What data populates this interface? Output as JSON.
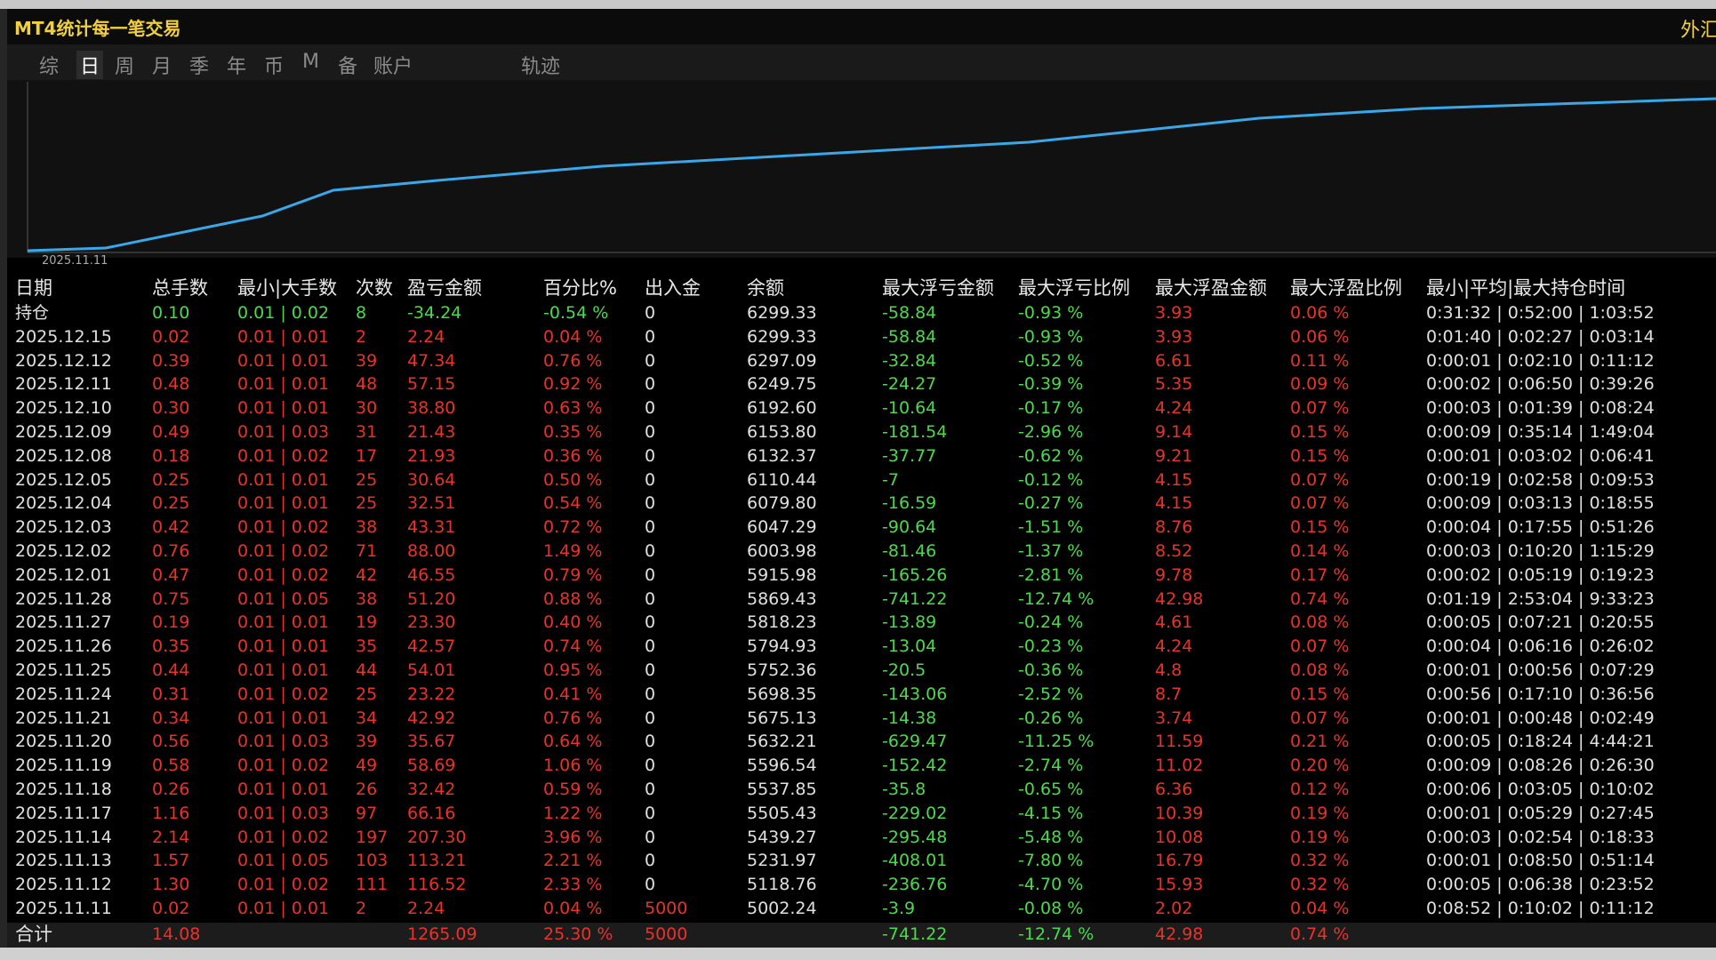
{
  "header": {
    "title": "MT4统计每一笔交易",
    "right": "外汇"
  },
  "tabs": [
    "综",
    "日",
    "周",
    "月",
    "季",
    "年",
    "币",
    "M",
    "备",
    "账户",
    "轨迹"
  ],
  "chart": {
    "x_label": "2025.11.11"
  },
  "table": {
    "columns": [
      "日期",
      "总手数",
      "最小|大手数",
      "次数",
      "盈亏金额",
      "百分比%",
      "出入金",
      "余额",
      "最大浮亏金额",
      "最大浮亏比例",
      "最大浮盈金额",
      "最大浮盈比例",
      "最小|平均|最大持仓时间"
    ],
    "rows": [
      [
        "持仓",
        "0.10",
        "0.01 | 0.02",
        "8",
        "-34.24",
        "-0.54 %",
        "0",
        "6299.33",
        "-58.84",
        "-0.93 %",
        "3.93",
        "0.06 %",
        "0:31:32 | 0:52:00 | 1:03:52"
      ],
      [
        "2025.12.15",
        "0.02",
        "0.01 | 0.01",
        "2",
        "2.24",
        "0.04 %",
        "0",
        "6299.33",
        "-58.84",
        "-0.93 %",
        "3.93",
        "0.06 %",
        "0:01:40 | 0:02:27 | 0:03:14"
      ],
      [
        "2025.12.12",
        "0.39",
        "0.01 | 0.01",
        "39",
        "47.34",
        "0.76 %",
        "0",
        "6297.09",
        "-32.84",
        "-0.52 %",
        "6.61",
        "0.11 %",
        "0:00:01 | 0:02:10 | 0:11:12"
      ],
      [
        "2025.12.11",
        "0.48",
        "0.01 | 0.01",
        "48",
        "57.15",
        "0.92 %",
        "0",
        "6249.75",
        "-24.27",
        "-0.39 %",
        "5.35",
        "0.09 %",
        "0:00:02 | 0:06:50 | 0:39:26"
      ],
      [
        "2025.12.10",
        "0.30",
        "0.01 | 0.01",
        "30",
        "38.80",
        "0.63 %",
        "0",
        "6192.60",
        "-10.64",
        "-0.17 %",
        "4.24",
        "0.07 %",
        "0:00:03 | 0:01:39 | 0:08:24"
      ],
      [
        "2025.12.09",
        "0.49",
        "0.01 | 0.03",
        "31",
        "21.43",
        "0.35 %",
        "0",
        "6153.80",
        "-181.54",
        "-2.96 %",
        "9.14",
        "0.15 %",
        "0:00:09 | 0:35:14 | 1:49:04"
      ],
      [
        "2025.12.08",
        "0.18",
        "0.01 | 0.02",
        "17",
        "21.93",
        "0.36 %",
        "0",
        "6132.37",
        "-37.77",
        "-0.62 %",
        "9.21",
        "0.15 %",
        "0:00:01 | 0:03:02 | 0:06:41"
      ],
      [
        "2025.12.05",
        "0.25",
        "0.01 | 0.01",
        "25",
        "30.64",
        "0.50 %",
        "0",
        "6110.44",
        "-7",
        "-0.12 %",
        "4.15",
        "0.07 %",
        "0:00:19 | 0:02:58 | 0:09:53"
      ],
      [
        "2025.12.04",
        "0.25",
        "0.01 | 0.01",
        "25",
        "32.51",
        "0.54 %",
        "0",
        "6079.80",
        "-16.59",
        "-0.27 %",
        "4.15",
        "0.07 %",
        "0:00:09 | 0:03:13 | 0:18:55"
      ],
      [
        "2025.12.03",
        "0.42",
        "0.01 | 0.02",
        "38",
        "43.31",
        "0.72 %",
        "0",
        "6047.29",
        "-90.64",
        "-1.51 %",
        "8.76",
        "0.15 %",
        "0:00:04 | 0:17:55 | 0:51:26"
      ],
      [
        "2025.12.02",
        "0.76",
        "0.01 | 0.02",
        "71",
        "88.00",
        "1.49 %",
        "0",
        "6003.98",
        "-81.46",
        "-1.37 %",
        "8.52",
        "0.14 %",
        "0:00:03 | 0:10:20 | 1:15:29"
      ],
      [
        "2025.12.01",
        "0.47",
        "0.01 | 0.02",
        "42",
        "46.55",
        "0.79 %",
        "0",
        "5915.98",
        "-165.26",
        "-2.81 %",
        "9.78",
        "0.17 %",
        "0:00:02 | 0:05:19 | 0:19:23"
      ],
      [
        "2025.11.28",
        "0.75",
        "0.01 | 0.05",
        "38",
        "51.20",
        "0.88 %",
        "0",
        "5869.43",
        "-741.22",
        "-12.74 %",
        "42.98",
        "0.74 %",
        "0:01:19 | 2:53:04 | 9:33:23"
      ],
      [
        "2025.11.27",
        "0.19",
        "0.01 | 0.01",
        "19",
        "23.30",
        "0.40 %",
        "0",
        "5818.23",
        "-13.89",
        "-0.24 %",
        "4.61",
        "0.08 %",
        "0:00:05 | 0:07:21 | 0:20:55"
      ],
      [
        "2025.11.26",
        "0.35",
        "0.01 | 0.01",
        "35",
        "42.57",
        "0.74 %",
        "0",
        "5794.93",
        "-13.04",
        "-0.23 %",
        "4.24",
        "0.07 %",
        "0:00:04 | 0:06:16 | 0:26:02"
      ],
      [
        "2025.11.25",
        "0.44",
        "0.01 | 0.01",
        "44",
        "54.01",
        "0.95 %",
        "0",
        "5752.36",
        "-20.5",
        "-0.36 %",
        "4.8",
        "0.08 %",
        "0:00:01 | 0:00:56 | 0:07:29"
      ],
      [
        "2025.11.24",
        "0.31",
        "0.01 | 0.02",
        "25",
        "23.22",
        "0.41 %",
        "0",
        "5698.35",
        "-143.06",
        "-2.52 %",
        "8.7",
        "0.15 %",
        "0:00:56 | 0:17:10 | 0:36:56"
      ],
      [
        "2025.11.21",
        "0.34",
        "0.01 | 0.01",
        "34",
        "42.92",
        "0.76 %",
        "0",
        "5675.13",
        "-14.38",
        "-0.26 %",
        "3.74",
        "0.07 %",
        "0:00:01 | 0:00:48 | 0:02:49"
      ],
      [
        "2025.11.20",
        "0.56",
        "0.01 | 0.03",
        "39",
        "35.67",
        "0.64 %",
        "0",
        "5632.21",
        "-629.47",
        "-11.25 %",
        "11.59",
        "0.21 %",
        "0:00:05 | 0:18:24 | 4:44:21"
      ],
      [
        "2025.11.19",
        "0.58",
        "0.01 | 0.02",
        "49",
        "58.69",
        "1.06 %",
        "0",
        "5596.54",
        "-152.42",
        "-2.74 %",
        "11.02",
        "0.20 %",
        "0:00:09 | 0:08:26 | 0:26:30"
      ],
      [
        "2025.11.18",
        "0.26",
        "0.01 | 0.01",
        "26",
        "32.42",
        "0.59 %",
        "0",
        "5537.85",
        "-35.8",
        "-0.65 %",
        "6.36",
        "0.12 %",
        "0:00:06 | 0:03:05 | 0:10:02"
      ],
      [
        "2025.11.17",
        "1.16",
        "0.01 | 0.03",
        "97",
        "66.16",
        "1.22 %",
        "0",
        "5505.43",
        "-229.02",
        "-4.15 %",
        "10.39",
        "0.19 %",
        "0:00:01 | 0:05:29 | 0:27:45"
      ],
      [
        "2025.11.14",
        "2.14",
        "0.01 | 0.02",
        "197",
        "207.30",
        "3.96 %",
        "0",
        "5439.27",
        "-295.48",
        "-5.48 %",
        "10.08",
        "0.19 %",
        "0:00:03 | 0:02:54 | 0:18:33"
      ],
      [
        "2025.11.13",
        "1.57",
        "0.01 | 0.05",
        "103",
        "113.21",
        "2.21 %",
        "0",
        "5231.97",
        "-408.01",
        "-7.80 %",
        "16.79",
        "0.32 %",
        "0:00:01 | 0:08:50 | 0:51:14"
      ],
      [
        "2025.11.12",
        "1.30",
        "0.01 | 0.02",
        "111",
        "116.52",
        "2.33 %",
        "0",
        "5118.76",
        "-236.76",
        "-4.70 %",
        "15.93",
        "0.32 %",
        "0:00:05 | 0:06:38 | 0:23:52"
      ],
      [
        "2025.11.11",
        "0.02",
        "0.01 | 0.01",
        "2",
        "2.24",
        "0.04 %",
        "5000",
        "5002.24",
        "-3.9",
        "-0.08 %",
        "2.02",
        "0.04 %",
        "0:08:52 | 0:10:02 | 0:11:12"
      ]
    ],
    "total": [
      "合计",
      "14.08",
      null,
      null,
      "1265.09",
      "25.30 %",
      "5000",
      null,
      "-741.22",
      "-12.74 %",
      "42.98",
      "0.74 %",
      null
    ]
  }
}
